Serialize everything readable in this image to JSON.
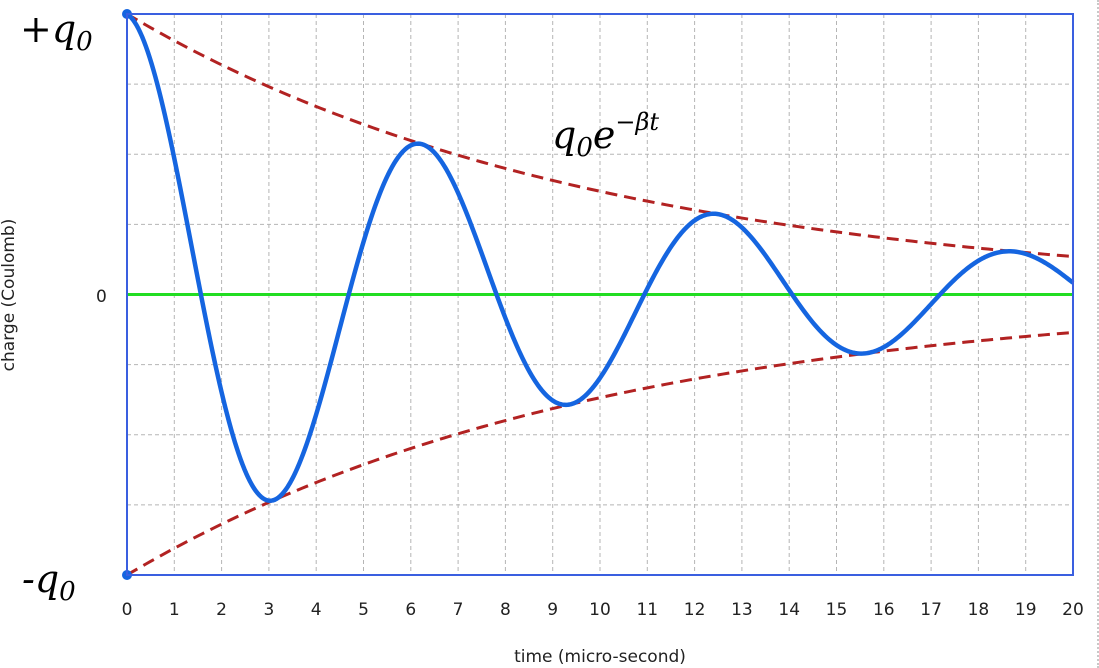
{
  "chart_data": {
    "type": "line",
    "xlabel": "time (micro-second)",
    "ylabel": "charge (Coulomb)",
    "x_ticks": [
      "0",
      "1",
      "2",
      "3",
      "4",
      "5",
      "6",
      "7",
      "8",
      "9",
      "10",
      "11",
      "12",
      "13",
      "14",
      "15",
      "16",
      "17",
      "18",
      "19",
      "20"
    ],
    "xlim": [
      0,
      20
    ],
    "y_axis_labels": {
      "top": "+q0",
      "middle": "0",
      "bottom": "-q0"
    },
    "ylim": [
      -1,
      1
    ],
    "grid": true,
    "annotation": {
      "base": "q",
      "base_sub": "0",
      "e": "e",
      "exponent": "−βt"
    },
    "series": [
      {
        "type": "damped-oscillation",
        "color": "#1565e0",
        "x": [
          0,
          3.0,
          6.2,
          9.3,
          12.4,
          15.6,
          18.7,
          20
        ],
        "y": [
          1.0,
          -0.73,
          0.53,
          -0.39,
          0.29,
          -0.21,
          0.15,
          0.06
        ],
        "amplitude": 1.0,
        "decay_beta": 0.1,
        "period": 6.25
      },
      {
        "type": "envelope-upper",
        "color": "#b22222",
        "dashed": true,
        "x": [
          0,
          5,
          10,
          15,
          20
        ],
        "y": [
          1.0,
          0.61,
          0.37,
          0.22,
          0.14
        ],
        "decay_beta": 0.1
      },
      {
        "type": "envelope-lower",
        "color": "#b22222",
        "dashed": true,
        "x": [
          0,
          5,
          10,
          15,
          20
        ],
        "y": [
          -1.0,
          -0.61,
          -0.37,
          -0.22,
          -0.14
        ],
        "decay_beta": 0.1
      },
      {
        "type": "zero-line",
        "color": "#22dd22",
        "y": 0
      }
    ],
    "colors": {
      "frame": "#3a5fe0",
      "grid": "#b5b5b5",
      "curve": "#1565e0",
      "envelope": "#b22222",
      "zero": "#22dd22"
    }
  }
}
